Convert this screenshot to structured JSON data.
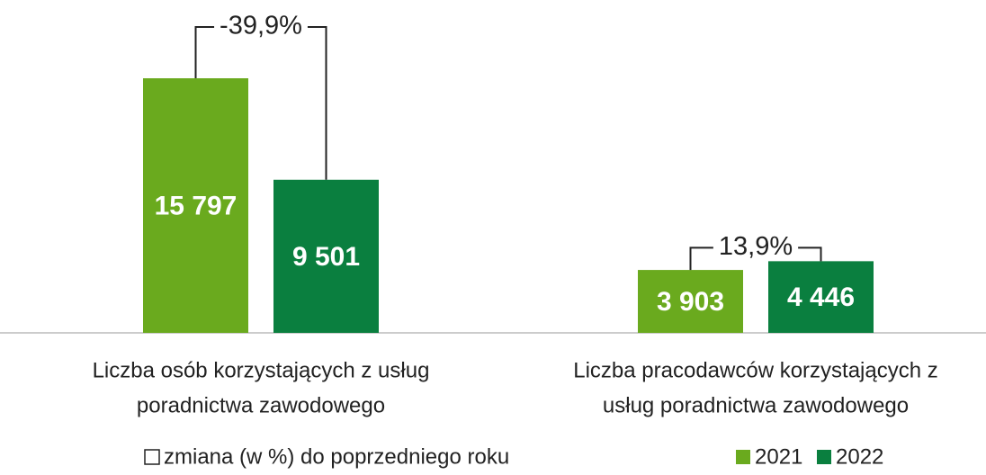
{
  "chart_data": {
    "type": "bar",
    "categories": [
      [
        "Liczba osób korzystających z usług",
        "poradnictwa zawodowego"
      ],
      [
        "Liczba pracodawców korzystających z",
        "usług poradnictwa zawodowego"
      ]
    ],
    "series": [
      {
        "name": "2021",
        "color": "#6aaa1e",
        "values": [
          15797,
          3903
        ],
        "value_labels": [
          "15 797",
          "3 903"
        ]
      },
      {
        "name": "2022",
        "color": "#0a7f3f",
        "values": [
          9501,
          4446
        ],
        "value_labels": [
          "9 501",
          "4 446"
        ]
      }
    ],
    "change": {
      "name": "zmiana (w %) do poprzedniego roku",
      "values": [
        -39.9,
        13.9
      ],
      "value_labels": [
        "-39,9%",
        "13,9%"
      ]
    },
    "legend": "bottom"
  }
}
